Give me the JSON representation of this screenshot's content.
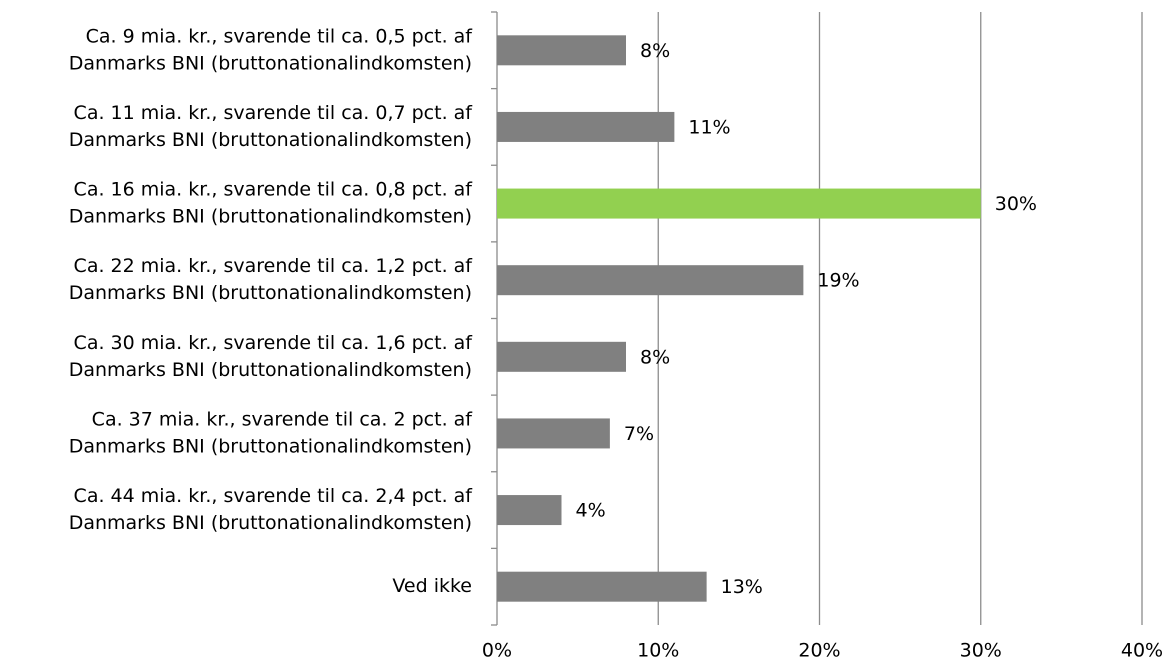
{
  "chart_data": {
    "type": "barh",
    "categories": [
      [
        "Ca. 9 mia. kr., svarende til ca. 0,5 pct. af",
        "Danmarks BNI (bruttonationalindkomsten)"
      ],
      [
        "Ca. 11 mia. kr., svarende til ca. 0,7 pct. af",
        "Danmarks BNI (bruttonationalindkomsten)"
      ],
      [
        "Ca. 16 mia. kr., svarende til ca. 0,8 pct. af",
        "Danmarks BNI (bruttonationalindkomsten)"
      ],
      [
        "Ca. 22 mia. kr., svarende til ca. 1,2 pct. af",
        "Danmarks BNI (bruttonationalindkomsten)"
      ],
      [
        "Ca. 30 mia. kr., svarende til ca. 1,6 pct. af",
        "Danmarks BNI (bruttonationalindkomsten)"
      ],
      [
        "Ca. 37 mia. kr., svarende til ca. 2 pct. af",
        "Danmarks BNI (bruttonationalindkomsten)"
      ],
      [
        "Ca. 44 mia. kr., svarende til ca. 2,4 pct. af",
        "Danmarks BNI (bruttonationalindkomsten)"
      ],
      [
        "Ved ikke"
      ]
    ],
    "values": [
      8,
      11,
      30,
      19,
      8,
      7,
      4,
      13
    ],
    "value_labels": [
      "8%",
      "11%",
      "30%",
      "19%",
      "8%",
      "7%",
      "4%",
      "13%"
    ],
    "colors": [
      "#808080",
      "#808080",
      "#92d050",
      "#808080",
      "#808080",
      "#808080",
      "#808080",
      "#808080"
    ],
    "xlim": [
      0,
      40
    ],
    "xticks": [
      {
        "value": 0,
        "label": "0%"
      },
      {
        "value": 10,
        "label": "10%"
      },
      {
        "value": 20,
        "label": "20%"
      },
      {
        "value": 30,
        "label": "30%"
      },
      {
        "value": 40,
        "label": "40%"
      }
    ],
    "grid": true
  }
}
